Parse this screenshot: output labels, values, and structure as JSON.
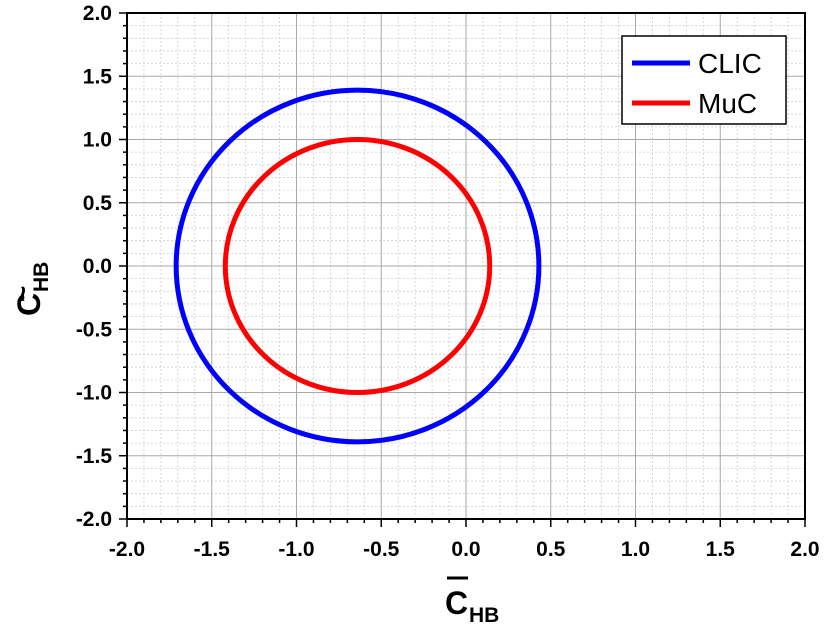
{
  "chart_data": {
    "type": "line",
    "xlabel": "C",
    "xlabel_sub": "HB",
    "xlabel_accent": "bar",
    "ylabel": "C",
    "ylabel_sub": "HB",
    "ylabel_accent": "tilde",
    "xlim": [
      -2.0,
      2.0
    ],
    "ylim": [
      -2.0,
      2.0
    ],
    "x_ticks": [
      "-2.0",
      "-1.5",
      "-1.0",
      "-0.5",
      "0.0",
      "0.5",
      "1.0",
      "1.5",
      "2.0"
    ],
    "y_ticks": [
      "2.0",
      "1.5",
      "1.0",
      "0.5",
      "0.0",
      "-0.5",
      "-1.0",
      "-1.5",
      "-2.0"
    ],
    "grid": true,
    "minor_grid": true,
    "legend_position": "top-right",
    "series": [
      {
        "name": "CLIC",
        "color": "#0000ff",
        "shape": "ellipse",
        "center": [
          -0.64,
          0.0
        ],
        "radius_x": 1.07,
        "radius_y": 1.39
      },
      {
        "name": "MuC",
        "color": "#ff0000",
        "shape": "ellipse",
        "center": [
          -0.64,
          0.0
        ],
        "radius_x": 0.78,
        "radius_y": 1.0
      }
    ]
  }
}
